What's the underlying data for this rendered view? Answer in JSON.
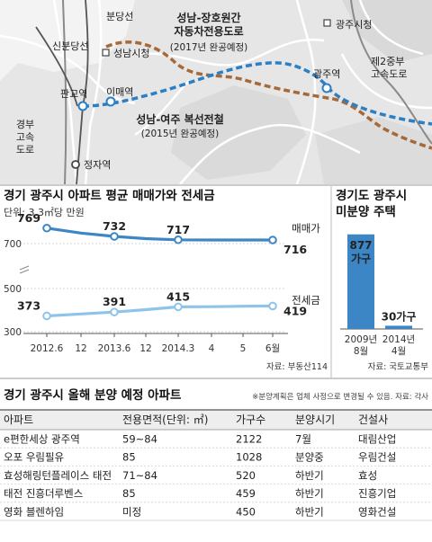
{
  "map": {
    "labels": {
      "bundang_line": "분당선",
      "sinbundang_line": "신분당선",
      "seongnam_city_hall": "성남시청",
      "pangyo_station": "판교역",
      "imae_station": "이매역",
      "gyeongbu_expressway": "경부\n고속\n도로",
      "jeongja_station": "정자역",
      "gwangju_city_hall": "광주시청",
      "gwangju_station": "광주역",
      "second_jungbu_expressway": "제2중부\n고속도로"
    },
    "roads": [
      {
        "name": "성남-장호원간\n자동차전용도로",
        "note": "(2017년 완공예정)"
      },
      {
        "name": "성남-여주 복선전철",
        "note": "(2015년 완공예정)"
      }
    ],
    "colors": {
      "road": "#a66a3a",
      "rail": "#2b7fc4"
    }
  },
  "line_chart": {
    "title": "경기 광주시 아파트 평균 매매가와 전세금",
    "unit": "단위: 3.3㎡당 만원",
    "source": "자료: 부동산114",
    "colors": {
      "sale": "#3d86c6",
      "jeonse": "#8fc4ea"
    }
  },
  "bar_chart": {
    "title": "경기도 광주시\n미분양 주택",
    "source": "자료: 국토교통부",
    "value_labels": [
      "877\n가구",
      "30가구"
    ],
    "colors": {
      "bar": "#3d86c6"
    }
  },
  "table": {
    "title": "경기 광주시 올해 분양 예정 아파트",
    "note": "※분양계획은 업체 사정으로 변경될 수 있음. 자료: 각사",
    "headers": [
      "아파트",
      "전용면적(단위: ㎡)",
      "가구수",
      "분양시기",
      "건설사"
    ],
    "rows": [
      [
        "e편한세상 광주역",
        "59~84",
        "2122",
        "7월",
        "대림산업"
      ],
      [
        "오포 우림필유",
        "85",
        "1028",
        "분양중",
        "우림건설"
      ],
      [
        "효성해링턴플레이스 태전",
        "71~84",
        "520",
        "하반기",
        "효성"
      ],
      [
        "태전 진흥더루벤스",
        "85",
        "459",
        "하반기",
        "진흥기업"
      ],
      [
        "영화 블렌하임",
        "미정",
        "450",
        "하반기",
        "영화건설"
      ]
    ]
  },
  "chart_data": [
    {
      "type": "line",
      "title": "경기 광주시 아파트 평균 매매가와 전세금",
      "ylabel": "단위: 3.3㎡당 만원",
      "x": [
        "2012.6",
        "12",
        "2013.6",
        "12",
        "2014.3",
        "4",
        "5",
        "6월"
      ],
      "y_ticks": [
        300,
        500,
        700
      ],
      "ylim": [
        300,
        800
      ],
      "series": [
        {
          "name": "매매가",
          "values": [
            769,
            747,
            732,
            722,
            717,
            716,
            716,
            716
          ],
          "labels": {
            "0": "769",
            "2": "732",
            "4": "717",
            "7": "716"
          }
        },
        {
          "name": "전세금",
          "values": [
            373,
            382,
            391,
            402,
            415,
            416,
            418,
            419
          ],
          "labels": {
            "0": "373",
            "2": "391",
            "4": "415",
            "7": "419"
          }
        }
      ],
      "grid": false
    },
    {
      "type": "bar",
      "title": "경기도 광주시\n미분양 주택",
      "categories": [
        "2009년\n8월",
        "2014년\n4월"
      ],
      "values": [
        877,
        30
      ],
      "ylim": [
        0,
        900
      ]
    }
  ]
}
